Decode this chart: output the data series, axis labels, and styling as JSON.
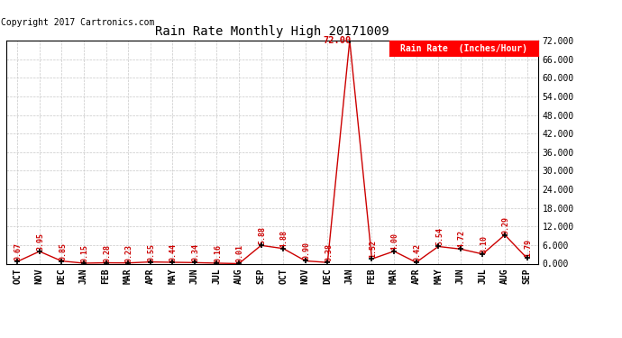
{
  "title": "Rain Rate Monthly High 20171009",
  "copyright": "Copyright 2017 Cartronics.com",
  "legend_label": "Rain Rate  (Inches/Hour)",
  "x_labels": [
    "OCT",
    "NOV",
    "DEC",
    "JAN",
    "FEB",
    "MAR",
    "APR",
    "MAY",
    "JUN",
    "JUL",
    "AUG",
    "SEP",
    "OCT",
    "NOV",
    "DEC",
    "JAN",
    "FEB",
    "MAR",
    "APR",
    "MAY",
    "JUN",
    "JUL",
    "AUG",
    "SEP"
  ],
  "y_values": [
    0.67,
    3.95,
    0.85,
    0.15,
    0.28,
    0.23,
    0.55,
    0.44,
    0.34,
    0.16,
    0.01,
    5.88,
    4.88,
    0.9,
    0.38,
    72.0,
    1.52,
    4.0,
    0.42,
    5.54,
    4.72,
    3.1,
    9.29,
    1.79
  ],
  "line_color": "#cc0000",
  "marker_color": "#000000",
  "bg_color": "#ffffff",
  "grid_color": "#c8c8c8",
  "ylim": [
    0,
    72
  ],
  "ytick_values": [
    0.0,
    6.0,
    12.0,
    18.0,
    24.0,
    30.0,
    36.0,
    42.0,
    48.0,
    54.0,
    60.0,
    66.0,
    72.0
  ],
  "annotation_color": "#cc0000",
  "title_color": "#000000",
  "copyright_color": "#000000",
  "peak_label": "72.00",
  "peak_index": 15,
  "fig_width": 6.9,
  "fig_height": 3.75,
  "dpi": 100
}
